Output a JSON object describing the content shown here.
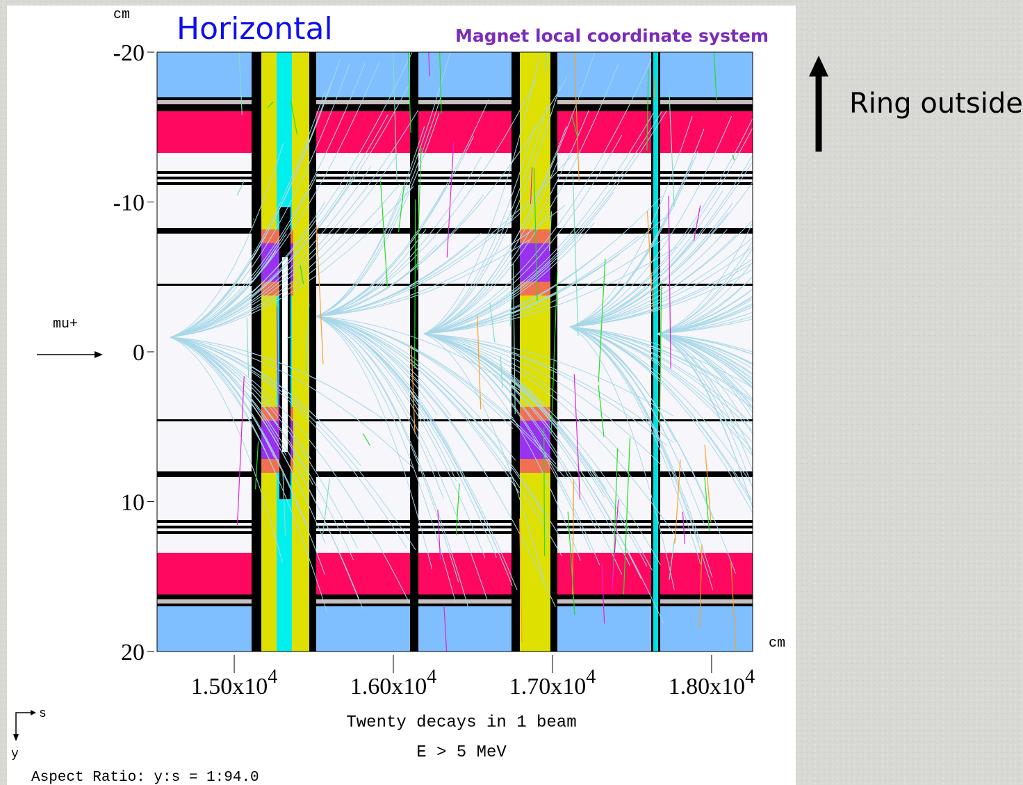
{
  "chart_data": {
    "type": "tracks",
    "title": "Horizontal",
    "subtitle": "Magnet local coordinate system",
    "y_unit": "cm",
    "x_unit": "cm",
    "beam_label": "mu+",
    "xlabel": "Twenty decays in 1 beam",
    "xlabel2": "E > 5 MeV",
    "aspect_note": "Aspect Ratio: y:s = 1:94.0",
    "axis_s": "s",
    "axis_y": "y",
    "side_note": "Ring outside",
    "xlim": [
      14515,
      18258
    ],
    "ylim": [
      20,
      -20
    ],
    "xticks": [
      {
        "value": 15000,
        "label": "1.50x10",
        "exponent": "4"
      },
      {
        "value": 16000,
        "label": "1.60x10",
        "exponent": "4"
      },
      {
        "value": 17000,
        "label": "1.70x10",
        "exponent": "4"
      },
      {
        "value": 18000,
        "label": "1.80x10",
        "exponent": "4"
      }
    ],
    "yticks": [
      -20,
      -10,
      0,
      10,
      20
    ]
  }
}
